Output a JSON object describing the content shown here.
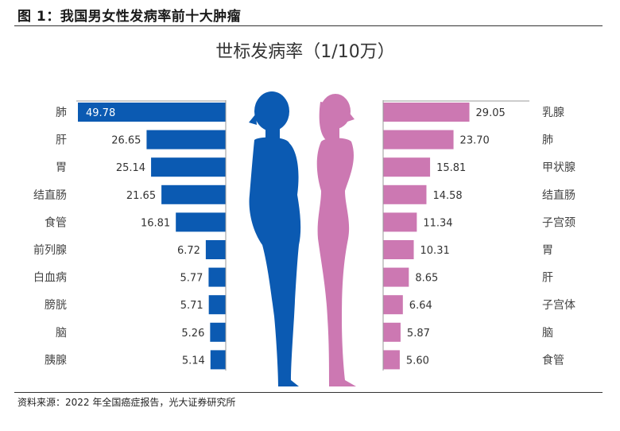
{
  "figure_title": "图 1：我国男女性发病率前十大肿瘤",
  "source_note": "资料来源：2022 年全国癌症报告，光大证券研究所",
  "colors": {
    "male": "#0b5ab2",
    "female": "#cc78b2",
    "axis": "#999999"
  },
  "icons": {
    "male": "male-silhouette-icon",
    "female": "female-silhouette-icon"
  },
  "chart_data": [
    {
      "type": "bar",
      "orientation": "horizontal",
      "title": "世标发病率（1/10万）",
      "side": "left",
      "categories": [
        "肺",
        "肝",
        "胃",
        "结直肠",
        "食管",
        "前列腺",
        "白血病",
        "膀胱",
        "脑",
        "胰腺"
      ],
      "values": [
        49.78,
        26.65,
        25.14,
        21.65,
        16.81,
        6.72,
        5.77,
        5.71,
        5.26,
        5.14
      ],
      "xlim": [
        0,
        49.78
      ]
    },
    {
      "type": "bar",
      "orientation": "horizontal",
      "title": "",
      "side": "right",
      "categories": [
        "乳腺",
        "肺",
        "甲状腺",
        "结直肠",
        "子宫颈",
        "胃",
        "肝",
        "子宫体",
        "脑",
        "食管"
      ],
      "values": [
        29.05,
        23.7,
        15.81,
        14.58,
        11.34,
        10.31,
        8.65,
        6.64,
        5.87,
        5.6
      ],
      "xlim": [
        0,
        49.78
      ]
    }
  ]
}
